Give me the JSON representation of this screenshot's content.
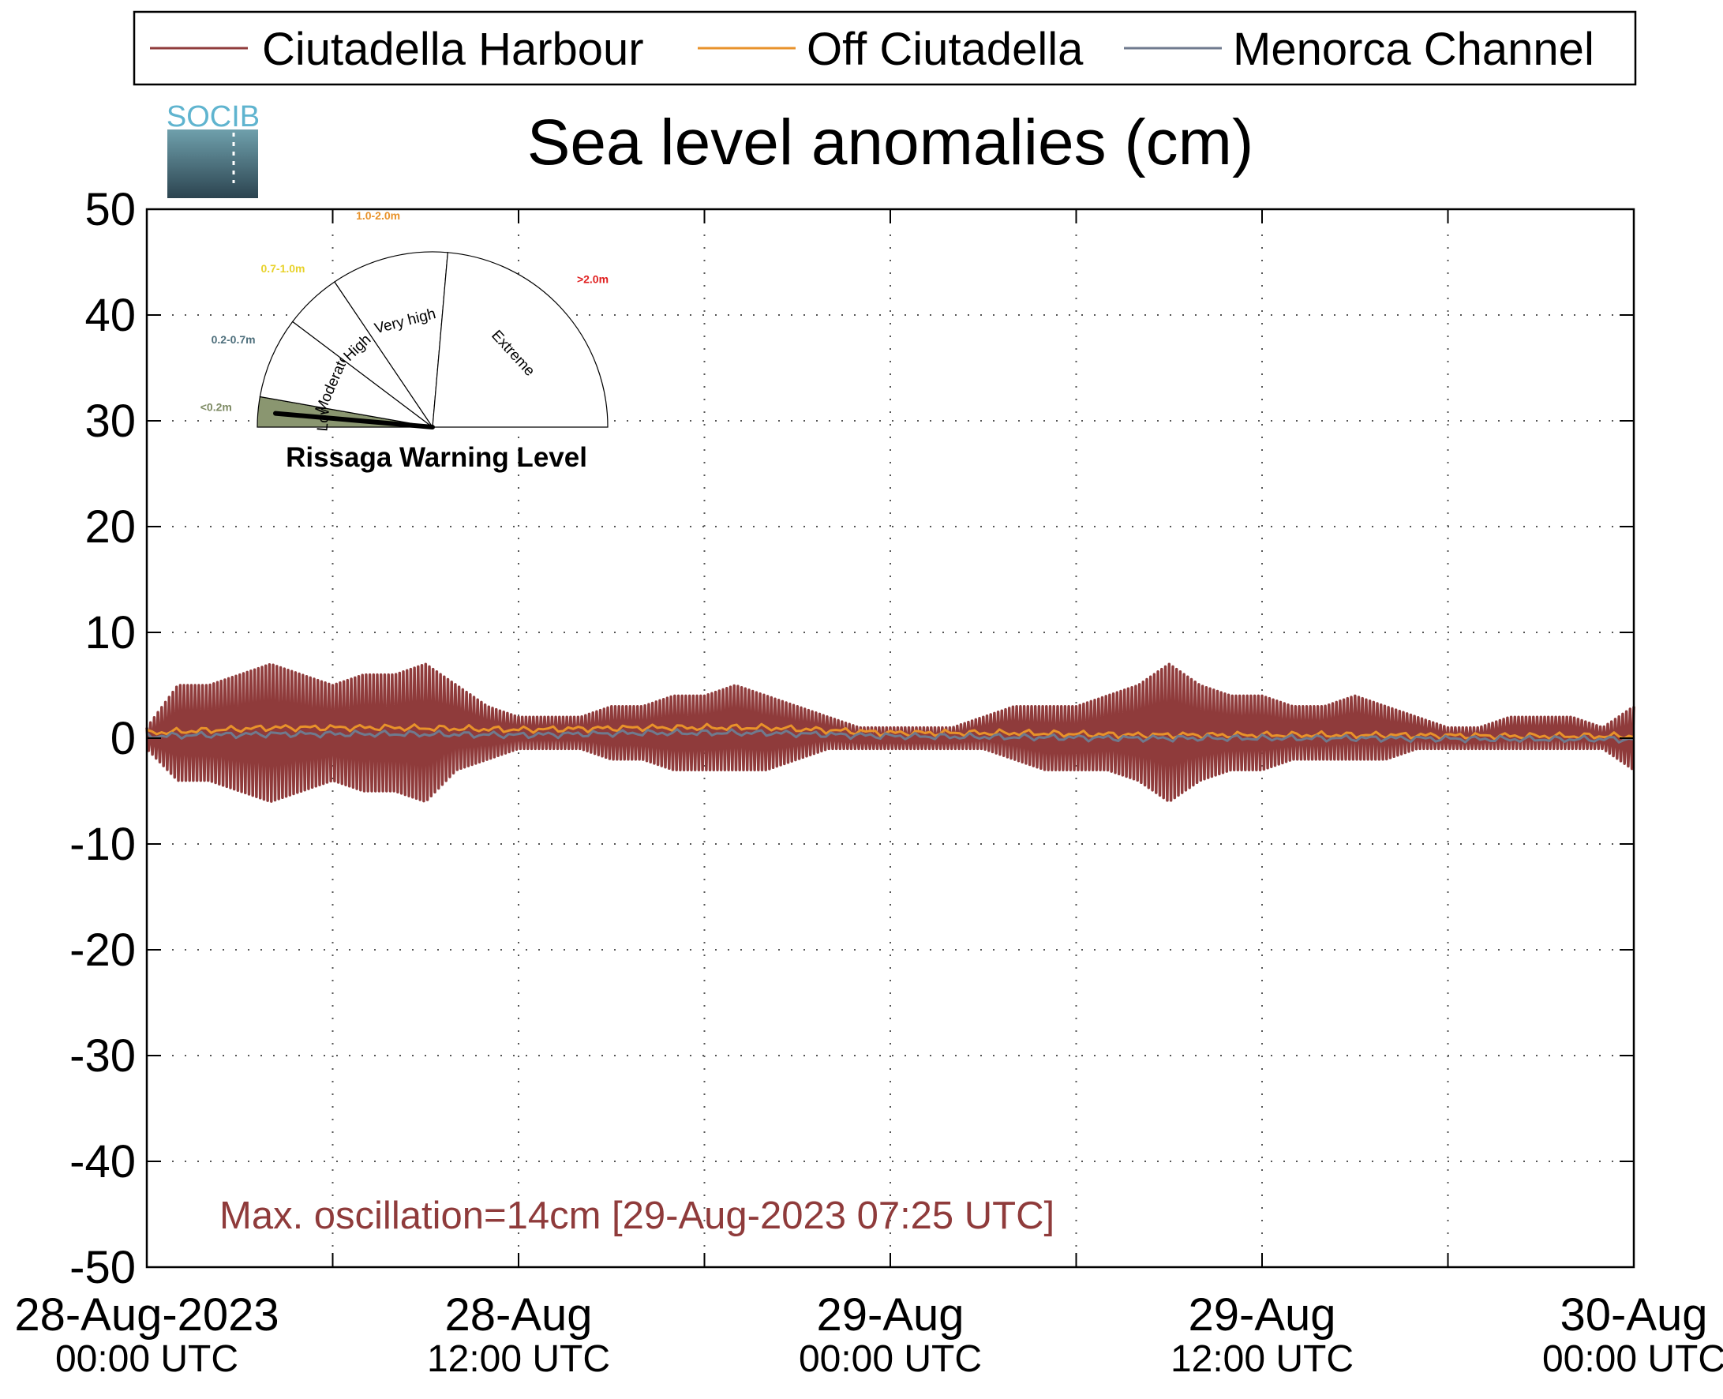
{
  "chart_data": {
    "type": "line",
    "title": "Sea level anomalies (cm)",
    "ylim": [
      -50,
      50
    ],
    "yticks": [
      50,
      40,
      30,
      20,
      10,
      0,
      -10,
      -20,
      -30,
      -40,
      -50
    ],
    "xlim": [
      "2023-08-28 00:00",
      "2023-08-30 00:00"
    ],
    "xticks": [
      {
        "x": "2023-08-28 00:00",
        "line1": "28-Aug-2023",
        "line2": "00:00 UTC"
      },
      {
        "x": "2023-08-28 12:00",
        "line1": "28-Aug",
        "line2": "12:00 UTC"
      },
      {
        "x": "2023-08-29 00:00",
        "line1": "29-Aug",
        "line2": "00:00 UTC"
      },
      {
        "x": "2023-08-29 12:00",
        "line1": "29-Aug",
        "line2": "12:00 UTC"
      },
      {
        "x": "2023-08-30 00:00",
        "line1": "30-Aug",
        "line2": "00:00 UTC"
      }
    ],
    "grid": true,
    "legend_position": "top",
    "series": [
      {
        "name": "Ciutadella Harbour",
        "color": "#8f3b3b",
        "hours": [
          0,
          1,
          2,
          3,
          4,
          5,
          6,
          7,
          8,
          9,
          10,
          11,
          12,
          13,
          14,
          15,
          16,
          17,
          18,
          19,
          20,
          21,
          22,
          23,
          24,
          25,
          26,
          27,
          28,
          29,
          30,
          31,
          32,
          33,
          34,
          35,
          36,
          37,
          38,
          39,
          40,
          41,
          42,
          43,
          44,
          45,
          46,
          47,
          48
        ],
        "envelope_max": [
          1,
          5,
          5,
          6,
          7,
          6,
          5,
          6,
          6,
          7,
          5,
          3,
          2,
          2,
          2,
          3,
          3,
          4,
          4,
          5,
          4,
          3,
          2,
          1,
          1,
          1,
          1,
          2,
          3,
          3,
          3,
          4,
          5,
          7,
          5,
          4,
          4,
          3,
          3,
          4,
          3,
          2,
          1,
          1,
          2,
          2,
          2,
          1,
          3
        ],
        "envelope_min": [
          -1,
          -4,
          -4,
          -5,
          -6,
          -5,
          -4,
          -5,
          -5,
          -6,
          -3,
          -2,
          -1,
          -1,
          -1,
          -2,
          -2,
          -3,
          -3,
          -3,
          -3,
          -2,
          -1,
          -1,
          -1,
          -1,
          -1,
          -1,
          -2,
          -3,
          -3,
          -3,
          -4,
          -6,
          -4,
          -3,
          -3,
          -2,
          -2,
          -2,
          -2,
          -1,
          -1,
          -1,
          -1,
          -1,
          -1,
          -1,
          -3
        ]
      },
      {
        "name": "Off Ciutadella",
        "color": "#e8922a",
        "hours": [
          0,
          4,
          8,
          12,
          16,
          20,
          24,
          28,
          32,
          36,
          40,
          44,
          48
        ],
        "values": [
          0.5,
          1,
          1,
          0.8,
          1,
          1,
          0.5,
          0.5,
          0.3,
          0.3,
          0.3,
          0.2,
          0.2
        ]
      },
      {
        "name": "Menorca Channel",
        "color": "#6f7a8e",
        "hours": [
          0,
          4,
          8,
          12,
          16,
          20,
          24,
          28,
          32,
          36,
          40,
          44,
          48
        ],
        "values": [
          0.2,
          0.4,
          0.4,
          0.3,
          0.5,
          0.5,
          0.2,
          0.1,
          0.0,
          0.0,
          0.0,
          -0.1,
          -0.1
        ]
      }
    ],
    "annotation": "Max. oscillation=14cm [29-Aug-2023 07:25 UTC]",
    "annotation_color": "#8f3b3b"
  },
  "logo_text": "SOCIB",
  "gauge": {
    "title": "Rissaga Warning Level",
    "selected_level": "Low",
    "sectors": [
      {
        "label": "Low",
        "range": "<0.2m",
        "range_color": "#7d8a63",
        "fill": "#8a9670"
      },
      {
        "label": "Moderate",
        "range": "0.2-0.7m",
        "range_color": "#4e6f7c",
        "fill": "#ffffff"
      },
      {
        "label": "High",
        "range": "0.7-1.0m",
        "range_color": "#e8d22a",
        "fill": "#ffffff"
      },
      {
        "label": "Very high",
        "range": "1.0-2.0m",
        "range_color": "#e8922a",
        "fill": "#ffffff"
      },
      {
        "label": "Extreme",
        "range": ">2.0m",
        "range_color": "#e02020",
        "fill": "#ffffff"
      }
    ]
  }
}
